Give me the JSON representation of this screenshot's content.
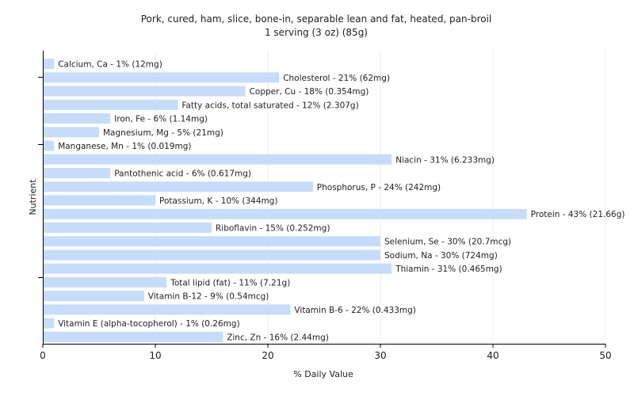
{
  "chart_data": {
    "type": "bar",
    "orientation": "horizontal",
    "title": "Pork, cured, ham, slice, bone-in, separable lean and fat, heated, pan-broil",
    "subtitle": "1 serving (3 oz) (85g)",
    "xlabel": "% Daily Value",
    "ylabel": "Nutrient",
    "xlim": [
      0,
      50
    ],
    "xticks": [
      0,
      10,
      20,
      30,
      40,
      50
    ],
    "grid": true,
    "bar_color": "#c6dcfa",
    "categories": [
      "Calcium, Ca",
      "Cholesterol",
      "Copper, Cu",
      "Fatty acids, total saturated",
      "Iron, Fe",
      "Magnesium, Mg",
      "Manganese, Mn",
      "Niacin",
      "Pantothenic acid",
      "Phosphorus, P",
      "Potassium, K",
      "Protein",
      "Riboflavin",
      "Selenium, Se",
      "Sodium, Na",
      "Thiamin",
      "Total lipid (fat)",
      "Vitamin B-12",
      "Vitamin B-6",
      "Vitamin E (alpha-tocopherol)",
      "Zinc, Zn"
    ],
    "values": [
      1,
      21,
      18,
      12,
      6,
      5,
      1,
      31,
      6,
      24,
      10,
      43,
      15,
      30,
      30,
      31,
      11,
      9,
      22,
      1,
      16
    ],
    "labels": [
      "Calcium, Ca - 1% (12mg)",
      "Cholesterol - 21% (62mg)",
      "Copper, Cu - 18% (0.354mg)",
      "Fatty acids, total saturated - 12% (2.307g)",
      "Iron, Fe - 6% (1.14mg)",
      "Magnesium, Mg - 5% (21mg)",
      "Manganese, Mn - 1% (0.019mg)",
      "Niacin - 31% (6.233mg)",
      "Pantothenic acid - 6% (0.617mg)",
      "Phosphorus, P - 24% (242mg)",
      "Potassium, K - 10% (344mg)",
      "Protein - 43% (21.66g)",
      "Riboflavin - 15% (0.252mg)",
      "Selenium, Se - 30% (20.7mcg)",
      "Sodium, Na - 30% (724mg)",
      "Thiamin - 31% (0.465mg)",
      "Total lipid (fat) - 11% (7.21g)",
      "Vitamin B-12 - 9% (0.54mcg)",
      "Vitamin B-6 - 22% (0.433mg)",
      "Vitamin E (alpha-tocopherol) - 1% (0.26mg)",
      "Zinc, Zn - 16% (2.44mg)"
    ]
  }
}
